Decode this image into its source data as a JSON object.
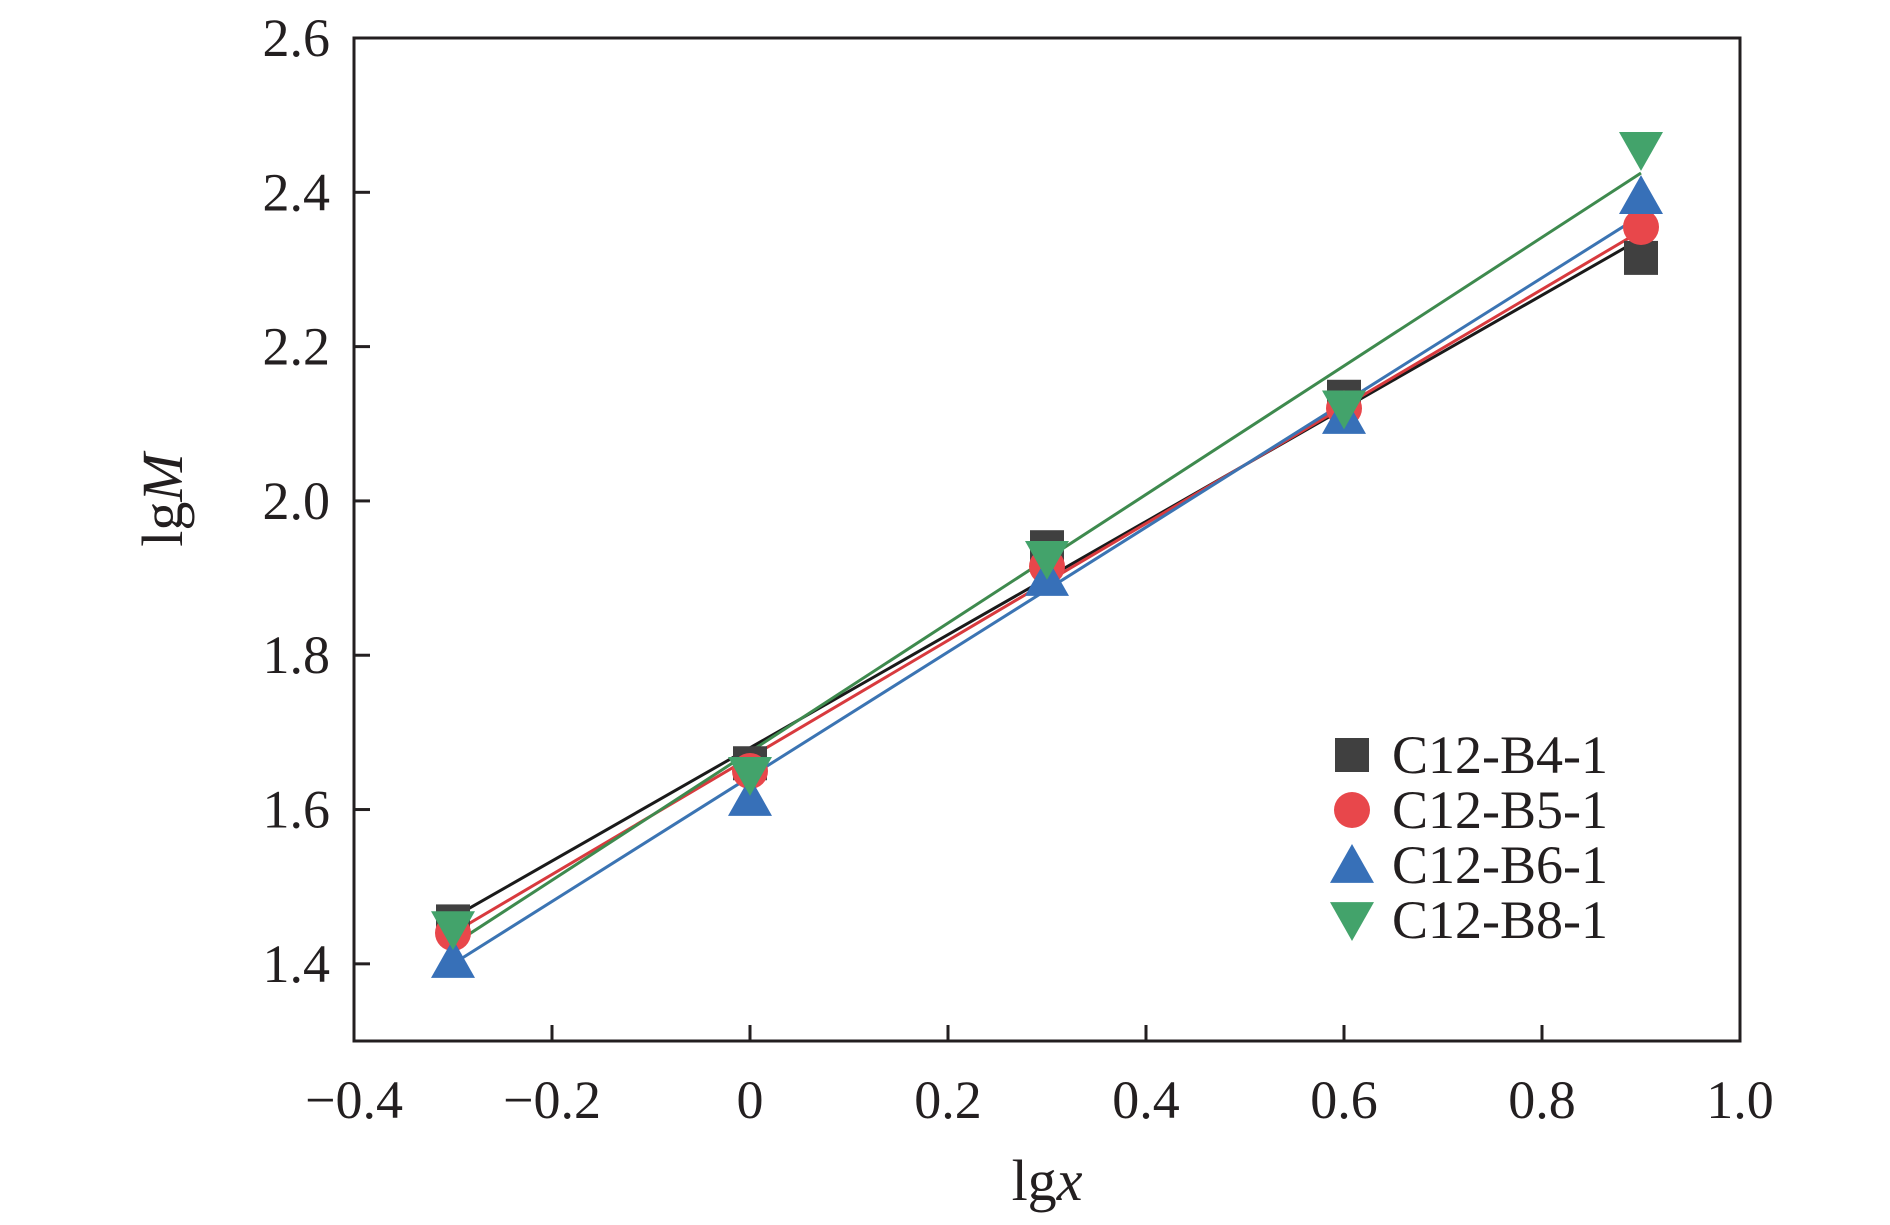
{
  "chart_data": {
    "type": "scatter",
    "title": "",
    "xlabel": {
      "prefix": "lg",
      "var": "x"
    },
    "ylabel": {
      "prefix": "lg",
      "var": "M"
    },
    "xlim": [
      -0.4,
      1.0
    ],
    "ylim": [
      1.3,
      2.6
    ],
    "x_ticks": [
      -0.4,
      -0.2,
      0,
      0.2,
      0.4,
      0.6,
      0.8,
      1.0
    ],
    "x_tick_labels": [
      "−0.4",
      "−0.2",
      "0",
      "0.2",
      "0.4",
      "0.6",
      "0.8",
      "1.0"
    ],
    "y_ticks": [
      1.4,
      1.6,
      1.8,
      2.0,
      2.2,
      2.4,
      2.6
    ],
    "y_tick_labels": [
      "1.4",
      "1.6",
      "1.8",
      "2.0",
      "2.2",
      "2.4",
      "2.6"
    ],
    "grid": false,
    "legend_position": "bottom-right",
    "series": [
      {
        "name": "C12-B4-1",
        "marker": "square",
        "color": "#404040",
        "line_color": "#1a1a1a",
        "x": [
          -0.3,
          0,
          0.3,
          0.6,
          0.9
        ],
        "y": [
          1.455,
          1.66,
          1.94,
          2.135,
          2.315
        ],
        "fit": {
          "x": [
            -0.3,
            0.9
          ],
          "y": [
            1.46,
            2.34
          ]
        }
      },
      {
        "name": "C12-B5-1",
        "marker": "circle",
        "color": "#e8474b",
        "line_color": "#d83a3e",
        "x": [
          -0.3,
          0,
          0.3,
          0.6,
          0.9
        ],
        "y": [
          1.44,
          1.65,
          1.915,
          2.12,
          2.355
        ],
        "fit": {
          "x": [
            -0.3,
            0.9
          ],
          "y": [
            1.44,
            2.35
          ]
        }
      },
      {
        "name": "C12-B6-1",
        "marker": "triangle-up",
        "color": "#3770b8",
        "line_color": "#3b74b3",
        "x": [
          -0.3,
          0,
          0.3,
          0.6,
          0.9
        ],
        "y": [
          1.405,
          1.615,
          1.9,
          2.11,
          2.395
        ],
        "fit": {
          "x": [
            -0.3,
            0.9
          ],
          "y": [
            1.4,
            2.37
          ]
        }
      },
      {
        "name": "C12-B8-1",
        "marker": "triangle-down",
        "color": "#43a36b",
        "line_color": "#3e8a4e",
        "x": [
          -0.3,
          0,
          0.3,
          0.6,
          0.9
        ],
        "y": [
          1.445,
          1.645,
          1.925,
          2.12,
          2.455
        ],
        "fit": {
          "x": [
            -0.3,
            0.9
          ],
          "y": [
            1.425,
            2.425
          ]
        }
      }
    ]
  }
}
